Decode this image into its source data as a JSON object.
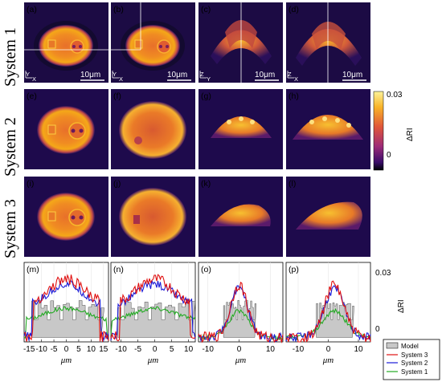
{
  "rows": [
    "System 1",
    "System 2",
    "System 3"
  ],
  "panels": [
    "(a)",
    "(b)",
    "(c)",
    "(d)",
    "(e)",
    "(f)",
    "(g)",
    "(h)",
    "(i)",
    "(j)",
    "(k)",
    "(l)"
  ],
  "plot_panels": [
    "(m)",
    "(n)",
    "(o)",
    "(p)"
  ],
  "scalebar": "10μm",
  "axes": {
    "a": [
      "Y",
      "X"
    ],
    "b": [
      "Y",
      "X"
    ],
    "c": [
      "Z",
      "Y"
    ],
    "d": [
      "Z",
      "X"
    ]
  },
  "colorbar": {
    "max": "0.03",
    "min": "0",
    "label": "ΔRI"
  },
  "plot_axis": {
    "ymax": "0.03",
    "ymin": "0",
    "ylabel": "ΔRI",
    "xlabel": "μm"
  },
  "legend": [
    "Model",
    "System 3",
    "System 2",
    "System 1"
  ],
  "colors": {
    "model": "#c8c8c8",
    "system3": "#e01010",
    "system2": "#1a1ad8",
    "system1": "#22aa22"
  },
  "chart_data": [
    {
      "type": "line",
      "panel": "(m)",
      "x_ticks": [
        "-15",
        "-10",
        "-5",
        "0",
        "5",
        "10",
        "15"
      ],
      "xlim": [
        -17,
        17
      ],
      "ylim": [
        -0.002,
        0.034
      ],
      "series": [
        {
          "name": "Model"
        },
        {
          "name": "System 3"
        },
        {
          "name": "System 2"
        },
        {
          "name": "System 1"
        }
      ]
    },
    {
      "type": "line",
      "panel": "(n)",
      "x_ticks": [
        "-10",
        "-5",
        "0",
        "5",
        "10"
      ],
      "xlim": [
        -13,
        12
      ],
      "ylim": [
        -0.002,
        0.034
      ],
      "series": [
        {
          "name": "Model"
        },
        {
          "name": "System 3"
        },
        {
          "name": "System 2"
        },
        {
          "name": "System 1"
        }
      ]
    },
    {
      "type": "line",
      "panel": "(o)",
      "x_ticks": [
        "-10",
        "0",
        "10"
      ],
      "xlim": [
        -13,
        14
      ],
      "ylim": [
        -0.002,
        0.034
      ],
      "series": [
        {
          "name": "Model"
        },
        {
          "name": "System 3"
        },
        {
          "name": "System 2"
        },
        {
          "name": "System 1"
        }
      ]
    },
    {
      "type": "line",
      "panel": "(p)",
      "x_ticks": [
        "-10",
        "0",
        "10"
      ],
      "xlim": [
        -14,
        14
      ],
      "ylim": [
        -0.002,
        0.034
      ],
      "series": [
        {
          "name": "Model"
        },
        {
          "name": "System 3"
        },
        {
          "name": "System 2"
        },
        {
          "name": "System 1"
        }
      ]
    }
  ]
}
